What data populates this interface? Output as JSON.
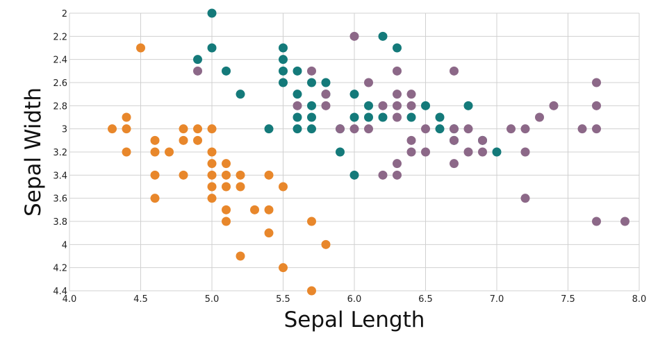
{
  "chart_data": {
    "type": "scatter",
    "title": "",
    "xlabel": "Sepal Length",
    "ylabel": "Sepal Width",
    "xlim": [
      4.0,
      8.0
    ],
    "ylim": [
      2.0,
      4.4
    ],
    "y_axis_inverted": true,
    "grid": true,
    "legend": "none",
    "x_ticks": [
      "4.0",
      "4.5",
      "5.0",
      "5.5",
      "6.0",
      "6.5",
      "7.0",
      "7.5",
      "8.0"
    ],
    "y_ticks": [
      "2",
      "2.2",
      "2.4",
      "2.6",
      "2.8",
      "3",
      "3.2",
      "3.4",
      "3.6",
      "3.8",
      "4",
      "4.2",
      "4.4"
    ],
    "series": [
      {
        "color": "#e8872b",
        "points": [
          [
            4.3,
            3.0
          ],
          [
            4.4,
            2.9
          ],
          [
            4.4,
            3.0
          ],
          [
            4.4,
            3.2
          ],
          [
            4.5,
            2.3
          ],
          [
            4.6,
            3.1
          ],
          [
            4.6,
            3.2
          ],
          [
            4.6,
            3.4
          ],
          [
            4.6,
            3.6
          ],
          [
            4.7,
            3.2
          ],
          [
            4.8,
            3.0
          ],
          [
            4.8,
            3.1
          ],
          [
            4.8,
            3.4
          ],
          [
            4.9,
            3.0
          ],
          [
            4.9,
            3.1
          ],
          [
            5.0,
            3.0
          ],
          [
            5.0,
            3.2
          ],
          [
            5.0,
            3.3
          ],
          [
            5.0,
            3.4
          ],
          [
            5.0,
            3.5
          ],
          [
            5.0,
            3.6
          ],
          [
            5.1,
            3.3
          ],
          [
            5.1,
            3.4
          ],
          [
            5.1,
            3.5
          ],
          [
            5.1,
            3.7
          ],
          [
            5.1,
            3.8
          ],
          [
            5.2,
            3.4
          ],
          [
            5.2,
            3.5
          ],
          [
            5.2,
            4.1
          ],
          [
            5.3,
            3.7
          ],
          [
            5.4,
            3.4
          ],
          [
            5.4,
            3.7
          ],
          [
            5.4,
            3.9
          ],
          [
            5.5,
            3.5
          ],
          [
            5.5,
            4.2
          ],
          [
            5.7,
            3.8
          ],
          [
            5.7,
            4.4
          ],
          [
            5.8,
            4.0
          ]
        ]
      },
      {
        "color": "#147a7a",
        "points": [
          [
            4.9,
            2.4
          ],
          [
            5.0,
            2.0
          ],
          [
            5.0,
            2.3
          ],
          [
            5.1,
            2.5
          ],
          [
            5.2,
            2.7
          ],
          [
            5.4,
            3.0
          ],
          [
            5.5,
            2.3
          ],
          [
            5.5,
            2.4
          ],
          [
            5.5,
            2.5
          ],
          [
            5.5,
            2.6
          ],
          [
            5.6,
            2.5
          ],
          [
            5.6,
            2.7
          ],
          [
            5.6,
            2.9
          ],
          [
            5.6,
            3.0
          ],
          [
            5.7,
            2.6
          ],
          [
            5.7,
            2.8
          ],
          [
            5.7,
            2.9
          ],
          [
            5.7,
            3.0
          ],
          [
            5.8,
            2.6
          ],
          [
            5.8,
            2.7
          ],
          [
            5.9,
            3.0
          ],
          [
            5.9,
            3.2
          ],
          [
            6.0,
            2.7
          ],
          [
            6.0,
            2.9
          ],
          [
            6.0,
            3.4
          ],
          [
            6.1,
            2.8
          ],
          [
            6.1,
            2.9
          ],
          [
            6.2,
            2.2
          ],
          [
            6.2,
            2.9
          ],
          [
            6.3,
            2.3
          ],
          [
            6.4,
            2.9
          ],
          [
            6.5,
            2.8
          ],
          [
            6.6,
            2.9
          ],
          [
            6.6,
            3.0
          ],
          [
            6.7,
            3.0
          ],
          [
            6.7,
            3.1
          ],
          [
            6.8,
            2.8
          ],
          [
            6.9,
            3.1
          ],
          [
            7.0,
            3.2
          ]
        ]
      },
      {
        "color": "#8c6888",
        "points": [
          [
            4.9,
            2.5
          ],
          [
            5.6,
            2.8
          ],
          [
            5.7,
            2.5
          ],
          [
            5.8,
            2.7
          ],
          [
            5.8,
            2.8
          ],
          [
            5.9,
            3.0
          ],
          [
            6.0,
            2.2
          ],
          [
            6.0,
            3.0
          ],
          [
            6.1,
            2.6
          ],
          [
            6.1,
            3.0
          ],
          [
            6.2,
            2.8
          ],
          [
            6.2,
            3.4
          ],
          [
            6.3,
            2.5
          ],
          [
            6.3,
            2.7
          ],
          [
            6.3,
            2.8
          ],
          [
            6.3,
            2.9
          ],
          [
            6.3,
            3.3
          ],
          [
            6.3,
            3.4
          ],
          [
            6.4,
            2.7
          ],
          [
            6.4,
            2.8
          ],
          [
            6.4,
            3.1
          ],
          [
            6.4,
            3.2
          ],
          [
            6.5,
            3.0
          ],
          [
            6.5,
            3.2
          ],
          [
            6.7,
            2.5
          ],
          [
            6.7,
            3.0
          ],
          [
            6.7,
            3.1
          ],
          [
            6.7,
            3.3
          ],
          [
            6.8,
            3.0
          ],
          [
            6.8,
            3.2
          ],
          [
            6.9,
            3.1
          ],
          [
            6.9,
            3.2
          ],
          [
            7.1,
            3.0
          ],
          [
            7.2,
            3.0
          ],
          [
            7.2,
            3.2
          ],
          [
            7.2,
            3.6
          ],
          [
            7.3,
            2.9
          ],
          [
            7.4,
            2.8
          ],
          [
            7.6,
            3.0
          ],
          [
            7.7,
            2.6
          ],
          [
            7.7,
            2.8
          ],
          [
            7.7,
            3.0
          ],
          [
            7.7,
            3.8
          ],
          [
            7.9,
            3.8
          ]
        ]
      }
    ]
  }
}
